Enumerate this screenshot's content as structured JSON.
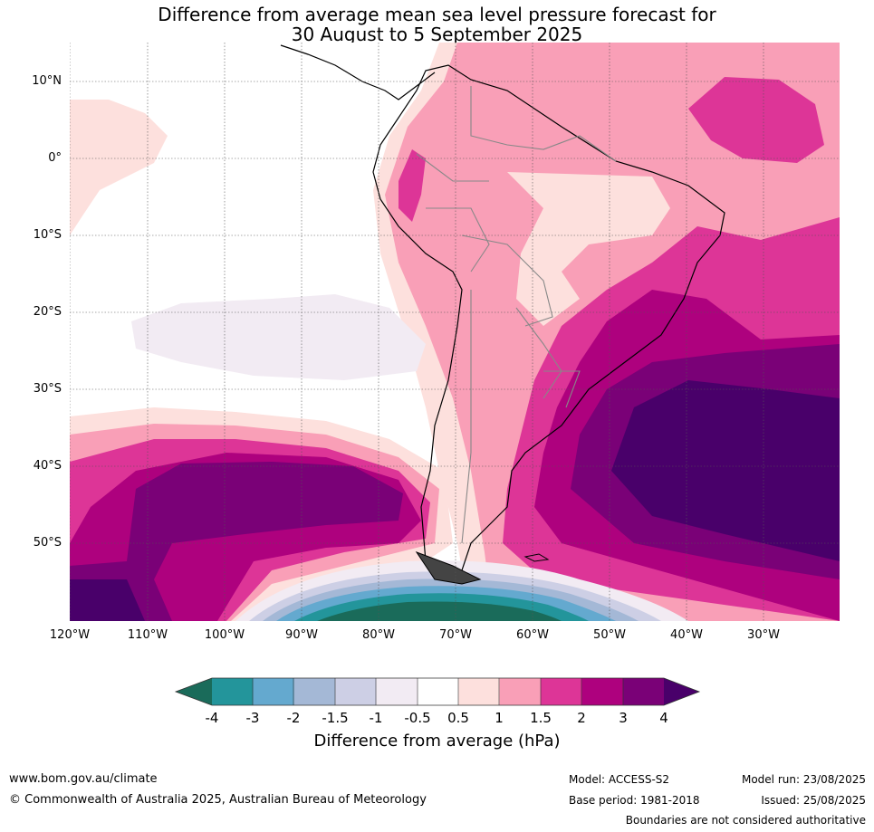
{
  "title": {
    "line1": "Difference from average mean sea level pressure forecast for",
    "line2": "30 August to 5 September 2025"
  },
  "map": {
    "latitude_labels": [
      "10°N",
      "0°",
      "10°S",
      "20°S",
      "30°S",
      "40°S",
      "50°S"
    ],
    "longitude_labels": [
      "120°W",
      "110°W",
      "100°W",
      "90°W",
      "80°W",
      "70°W",
      "60°W",
      "50°W",
      "40°W",
      "30°W"
    ],
    "extent": {
      "lon_min": -120,
      "lon_max": -21,
      "lat_min": -60,
      "lat_max": 15
    }
  },
  "colorbar": {
    "title": "Difference from average (hPa)",
    "tick_labels": [
      "-4",
      "-3",
      "-2",
      "-1.5",
      "-1",
      "-0.5",
      "0.5",
      "1",
      "1.5",
      "2",
      "3",
      "4"
    ],
    "colors": [
      "#1a6b5a",
      "#23959b",
      "#64a9cf",
      "#a4b8d6",
      "#cdcfe5",
      "#f2ebf3",
      "#ffffff",
      "#fde0dd",
      "#f99fb7",
      "#dd3597",
      "#ae017e",
      "#7a0177",
      "#49006a"
    ],
    "extend": "both"
  },
  "footer": {
    "website": "www.bom.gov.au/climate",
    "copyright": "© Commonwealth of Australia 2025, Australian Bureau of Meteorology",
    "model": "Model: ACCESS-S2",
    "base_period": "Base period: 1981-2018",
    "model_run": "Model run: 23/08/2025",
    "issued": "Issued: 25/08/2025",
    "disclaimer": "Boundaries are not considered authoritative"
  }
}
